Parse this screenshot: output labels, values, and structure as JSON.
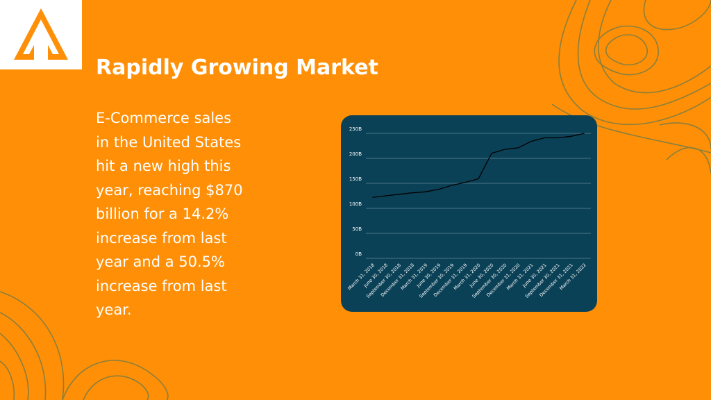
{
  "header": {
    "title": "Rapidly Growing Market"
  },
  "body": {
    "lines": [
      "E-Commerce sales",
      "in the United States",
      "hit a new high this",
      "year, reaching $870",
      "billion for a 14.2%",
      "increase from last",
      "year and a 50.5%",
      "increase from last",
      "year."
    ]
  },
  "chart_data": {
    "type": "line",
    "categories": [
      "March 31, 2018",
      "June 30, 2018",
      "September 30, 2018",
      "December 31, 2018",
      "March 31, 2019",
      "June 30, 2019",
      "September 30, 2019",
      "December 31, 2019",
      "March 31, 2020",
      "June 30, 2020",
      "September 30, 2020",
      "December 31, 2020",
      "March 31, 2021",
      "June 30, 2021",
      "September 30, 2021",
      "December 31, 2021",
      "March 31, 2022"
    ],
    "values": [
      122,
      125,
      128,
      131,
      133,
      138,
      146,
      152,
      159,
      210,
      218,
      221,
      234,
      241,
      241,
      244,
      250
    ],
    "color": "#000000",
    "ylim": [
      0,
      250
    ],
    "yticks": [
      {
        "value": 0,
        "label": "0B"
      },
      {
        "value": 50,
        "label": "50B"
      },
      {
        "value": 100,
        "label": "100B"
      },
      {
        "value": 150,
        "label": "150B"
      },
      {
        "value": 200,
        "label": "200B"
      },
      {
        "value": 250,
        "label": "250B"
      }
    ],
    "grid": true
  }
}
